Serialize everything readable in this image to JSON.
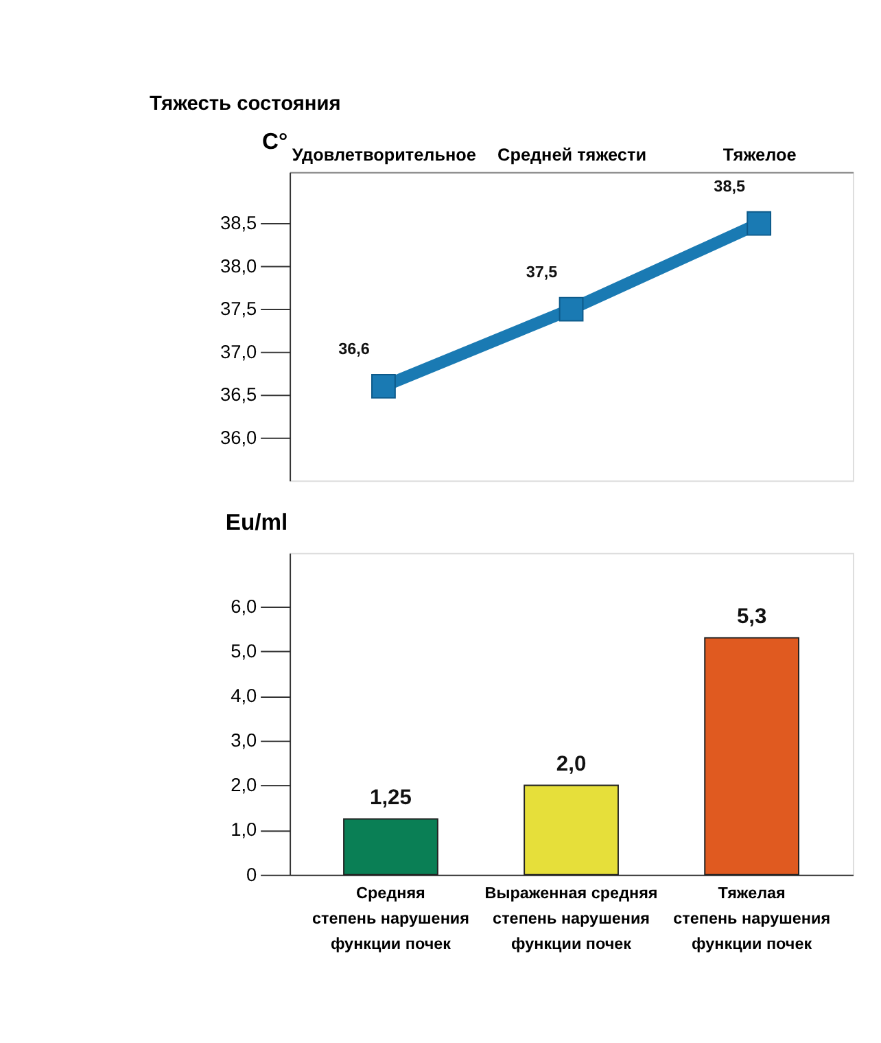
{
  "chart_data": [
    {
      "type": "line",
      "xlabel": "Тяжесть состояния",
      "ylabel": "C°",
      "categories": [
        "Удовлетворительное",
        "Средней тяжести",
        "Тяжелое"
      ],
      "series": [
        {
          "color": "#1a7ab3",
          "values": [
            36.6,
            37.5,
            38.5
          ],
          "value_labels": [
            "36,6",
            "37,5",
            "38,5"
          ]
        }
      ],
      "ylim": [
        35.5,
        39.1
      ],
      "yticks": [
        {
          "value": 36.0,
          "label": "36,0"
        },
        {
          "value": 36.5,
          "label": "36,5"
        },
        {
          "value": 37.0,
          "label": "37,0"
        },
        {
          "value": 37.5,
          "label": "37,5"
        },
        {
          "value": 38.0,
          "label": "38,0"
        },
        {
          "value": 38.5,
          "label": "38,5"
        }
      ],
      "marker": "square",
      "grid": false
    },
    {
      "type": "bar",
      "ylabel": "Eu/ml",
      "categories": [
        "Средняя\nстепень нарушения\nфункции почек",
        "Выраженная средняя\nстепень нарушения\nфункции почек",
        "Тяжелая\nстепень нарушения\nфункции почек"
      ],
      "values": [
        1.25,
        2.0,
        5.3
      ],
      "colors": [
        "#0a7f55",
        "#e6df3a",
        "#e05a20"
      ],
      "value_labels": [
        "1,25",
        "2,0",
        "5,3"
      ],
      "ylim": [
        0,
        7.2
      ],
      "yticks": [
        0,
        {
          "value": 1,
          "label": "1,0"
        },
        {
          "value": 2,
          "label": "2,0"
        },
        {
          "value": 3,
          "label": "3,0"
        },
        {
          "value": 4,
          "label": "4,0"
        },
        {
          "value": 5,
          "label": "5,0"
        },
        {
          "value": 6,
          "label": "6,0"
        }
      ],
      "grid": false
    }
  ]
}
